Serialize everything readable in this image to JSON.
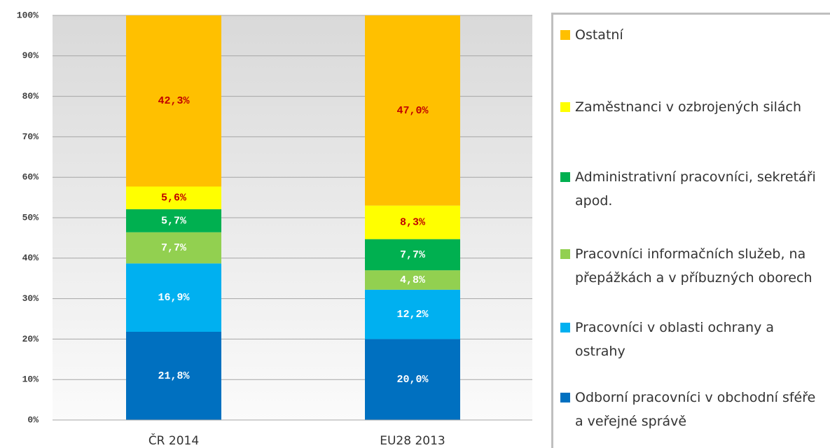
{
  "chart_data": {
    "type": "stacked_bar",
    "categories": [
      "ČR 2014",
      "EU28 2013"
    ],
    "ylim": [
      0,
      100
    ],
    "yticks": [
      {
        "value": 0,
        "label": "0%"
      },
      {
        "value": 10,
        "label": "10%"
      },
      {
        "value": 20,
        "label": "20%"
      },
      {
        "value": 30,
        "label": "30%"
      },
      {
        "value": 40,
        "label": "40%"
      },
      {
        "value": 50,
        "label": "50%"
      },
      {
        "value": 60,
        "label": "60%"
      },
      {
        "value": 70,
        "label": "70%"
      },
      {
        "value": 80,
        "label": "80%"
      },
      {
        "value": 90,
        "label": "90%"
      },
      {
        "value": 100,
        "label": "100%"
      }
    ],
    "grid": true,
    "legend": "right",
    "series": [
      {
        "name": "Odborní pracovníci v obchodní sféře a veřejné správě",
        "color": "#0070c0",
        "label_color": "#ffffff",
        "values": [
          21.8,
          20.0
        ],
        "value_labels": [
          "21,8%",
          "20,0%"
        ]
      },
      {
        "name": "Pracovníci v oblasti ochrany a ostrahy",
        "color": "#00b0f0",
        "label_color": "#ffffff",
        "values": [
          16.9,
          12.2
        ],
        "value_labels": [
          "16,9%",
          "12,2%"
        ]
      },
      {
        "name": "Pracovníci informačních služeb, na přepážkách a v příbuzných oborech",
        "color": "#92d050",
        "label_color": "#ffffff",
        "values": [
          7.7,
          4.8
        ],
        "value_labels": [
          "7,7%",
          "4,8%"
        ]
      },
      {
        "name": "Administrativní pracovníci, sekretáři apod.",
        "color": "#00b050",
        "label_color": "#ffffff",
        "values": [
          5.7,
          7.7
        ],
        "value_labels": [
          "5,7%",
          "7,7%"
        ]
      },
      {
        "name": "Zaměstnanci v ozbrojených silách",
        "color": "#ffff00",
        "label_color": "#c00000",
        "values": [
          5.6,
          8.3
        ],
        "value_labels": [
          "5,6%",
          "8,3%"
        ]
      },
      {
        "name": "Ostatní",
        "color": "#ffc000",
        "label_color": "#c00000",
        "values": [
          42.3,
          47.0
        ],
        "value_labels": [
          "42,3%",
          "47,0%"
        ]
      }
    ]
  }
}
